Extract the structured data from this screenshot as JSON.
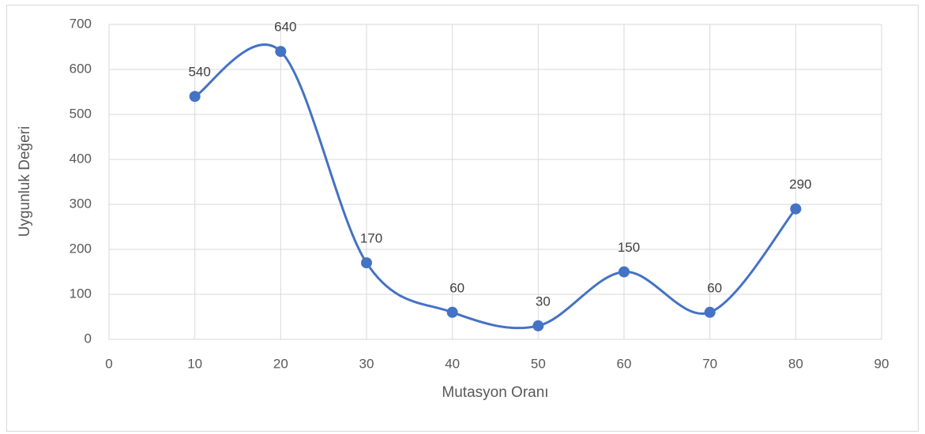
{
  "chart_data": {
    "type": "scatter-smooth",
    "x_label": "Mutasyon Oranı",
    "y_label": "Uygunluk Değeri",
    "x": [
      10,
      20,
      30,
      40,
      50,
      60,
      70,
      80
    ],
    "values": [
      540,
      640,
      170,
      60,
      30,
      150,
      60,
      290
    ],
    "color": "#4472c4",
    "xlim": [
      0,
      90
    ],
    "xticks": [
      0,
      10,
      20,
      30,
      40,
      50,
      60,
      70,
      80,
      90
    ],
    "ylim": [
      0,
      700
    ],
    "yticks": [
      0,
      100,
      200,
      300,
      400,
      500,
      600,
      700
    ],
    "grid": true
  }
}
